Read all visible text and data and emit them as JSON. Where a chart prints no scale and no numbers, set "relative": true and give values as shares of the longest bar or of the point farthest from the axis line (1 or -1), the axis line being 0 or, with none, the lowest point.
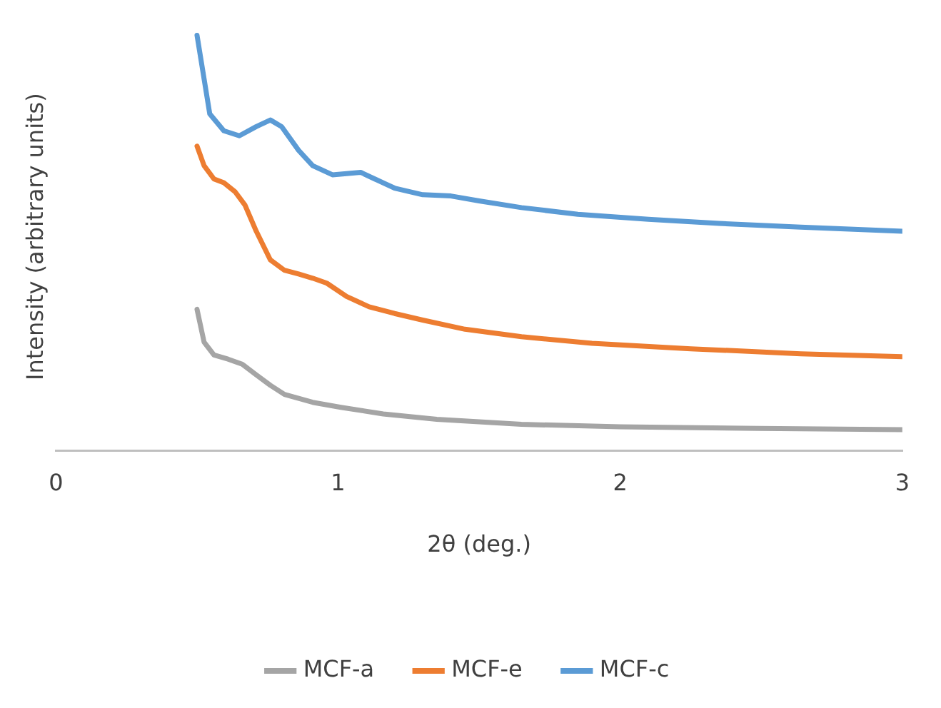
{
  "chart_data": {
    "type": "line",
    "relative": true,
    "xlabel": "2θ (deg.)",
    "ylabel": "Intensity (arbitrary units)",
    "xlim": [
      0,
      3
    ],
    "xticks": [
      0,
      1,
      2,
      3
    ],
    "tick_labels": "x",
    "grid": false,
    "legend": "bottom",
    "marker": "none",
    "line_style": "solid",
    "series": [
      {
        "name": "MCF-a",
        "color": "#a5a5a5",
        "x": [
          0.5,
          0.525,
          0.56,
          0.61,
          0.66,
          0.71,
          0.76,
          0.81,
          0.91,
          1.01,
          1.16,
          1.35,
          1.65,
          2.0,
          2.49,
          3.0
        ],
        "values": [
          0.34,
          0.261,
          0.23,
          0.22,
          0.208,
          0.182,
          0.157,
          0.135,
          0.116,
          0.104,
          0.088,
          0.075,
          0.063,
          0.057,
          0.053,
          0.05
        ]
      },
      {
        "name": "MCF-e",
        "color": "#ed7d31",
        "x": [
          0.5,
          0.525,
          0.56,
          0.595,
          0.635,
          0.67,
          0.71,
          0.76,
          0.81,
          0.86,
          0.91,
          0.96,
          1.03,
          1.11,
          1.2,
          1.3,
          1.45,
          1.65,
          1.9,
          2.25,
          2.64,
          3.0
        ],
        "values": [
          0.733,
          0.686,
          0.654,
          0.645,
          0.623,
          0.591,
          0.528,
          0.459,
          0.434,
          0.425,
          0.415,
          0.403,
          0.371,
          0.346,
          0.33,
          0.314,
          0.292,
          0.274,
          0.258,
          0.245,
          0.233,
          0.226
        ]
      },
      {
        "name": "MCF-c",
        "color": "#5b9bd5",
        "x": [
          0.5,
          0.545,
          0.595,
          0.65,
          0.71,
          0.76,
          0.8,
          0.86,
          0.91,
          0.98,
          1.03,
          1.08,
          1.13,
          1.2,
          1.3,
          1.4,
          1.5,
          1.65,
          1.85,
          2.1,
          2.35,
          2.64,
          3.0
        ],
        "values": [
          1.0,
          0.811,
          0.77,
          0.758,
          0.78,
          0.796,
          0.78,
          0.723,
          0.686,
          0.664,
          0.667,
          0.67,
          0.654,
          0.632,
          0.616,
          0.613,
          0.601,
          0.585,
          0.569,
          0.557,
          0.547,
          0.538,
          0.528
        ]
      }
    ]
  }
}
